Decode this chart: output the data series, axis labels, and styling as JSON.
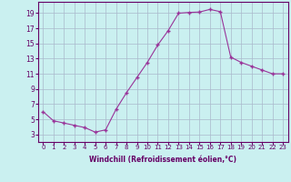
{
  "x": [
    0,
    1,
    2,
    3,
    4,
    5,
    6,
    7,
    8,
    9,
    10,
    11,
    12,
    13,
    14,
    15,
    16,
    17,
    18,
    19,
    20,
    21,
    22,
    23
  ],
  "y": [
    6.0,
    4.8,
    4.5,
    4.2,
    3.9,
    3.3,
    3.6,
    6.3,
    8.5,
    10.5,
    12.5,
    14.8,
    16.7,
    19.0,
    19.1,
    19.15,
    19.5,
    19.2,
    13.2,
    12.5,
    12.0,
    11.5,
    11.0,
    11.0
  ],
  "line_color": "#993399",
  "marker": "+",
  "bg_color": "#caf0f0",
  "grid_color": "#aab8cc",
  "xlabel": "Windchill (Refroidissement éolien,°C)",
  "yticks": [
    3,
    5,
    7,
    9,
    11,
    13,
    15,
    17,
    19
  ],
  "xticks": [
    0,
    1,
    2,
    3,
    4,
    5,
    6,
    7,
    8,
    9,
    10,
    11,
    12,
    13,
    14,
    15,
    16,
    17,
    18,
    19,
    20,
    21,
    22,
    23
  ],
  "ylim": [
    2.0,
    20.5
  ],
  "xlim": [
    -0.5,
    23.5
  ],
  "label_color": "#660066",
  "tick_color": "#660066",
  "axis_color": "#660066",
  "xlabel_fontsize": 5.5,
  "tick_fontsize_x": 5.0,
  "tick_fontsize_y": 5.5
}
